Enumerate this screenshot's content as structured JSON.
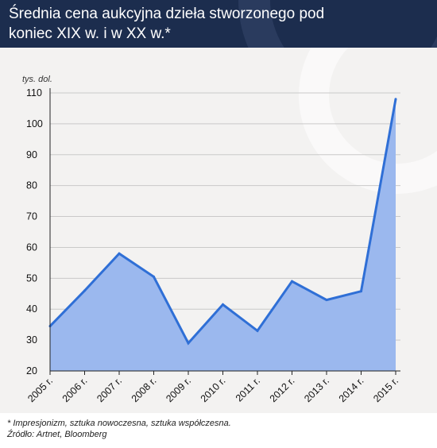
{
  "header": {
    "title": "Średnia cena aukcyjna dzieła stworzonego pod koniec XIX w. i w XX w.*"
  },
  "footnote": {
    "line1": "* Impresjonizm, sztuka nowoczesna, sztuka współczesna.",
    "line2": "Źródło: Artnet, Bloomberg"
  },
  "colors": {
    "header_bg": "#1c2d4e",
    "chart_bg": "#f3f2f1",
    "line": "#2f6fd6",
    "area_fill": "#9bb8ee"
  },
  "chart_data": {
    "type": "area",
    "title": "Średnia cena aukcyjna dzieła stworzonego pod koniec XIX w. i w XX w.*",
    "ylabel": "tys. dol.",
    "xlabel": "",
    "categories": [
      "2005 r.",
      "2006 r.",
      "2007 r.",
      "2008 r.",
      "2009 r.",
      "2010 r.",
      "2011 r.",
      "2012 r.",
      "2013 r.",
      "2014 r.",
      "2015 r."
    ],
    "values": [
      34.5,
      46,
      58,
      50.5,
      29,
      41.5,
      33,
      49,
      43,
      45.8,
      108
    ],
    "ylim": [
      20,
      110
    ],
    "yticks": [
      20,
      30,
      40,
      50,
      60,
      70,
      80,
      90,
      100,
      110
    ],
    "grid": true
  }
}
